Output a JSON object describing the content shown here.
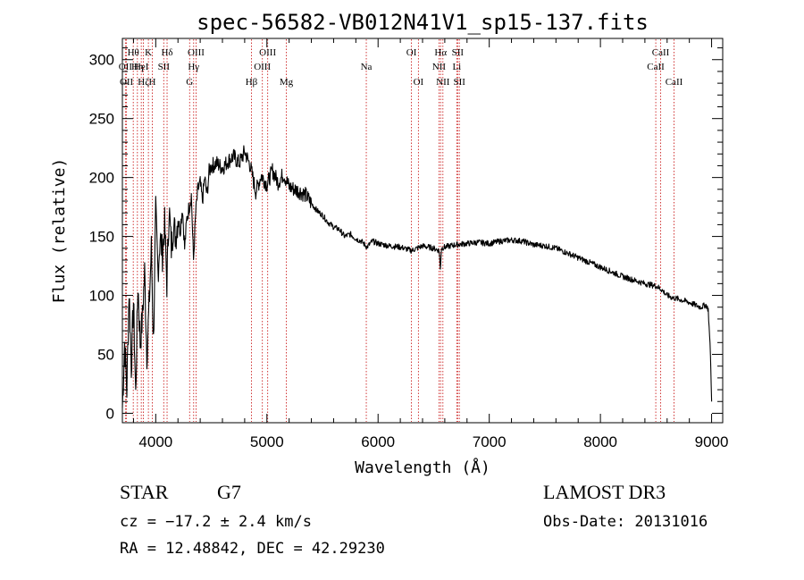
{
  "chart_data": {
    "type": "line",
    "title": "spec-56582-VB012N41V1_sp15-137.fits",
    "xlabel": "Wavelength (Å)",
    "ylabel": "Flux (relative)",
    "xlim": [
      3700,
      9100
    ],
    "ylim": [
      -8,
      318
    ],
    "xticks": [
      4000,
      5000,
      6000,
      7000,
      8000,
      9000
    ],
    "yticks": [
      0,
      50,
      100,
      150,
      200,
      250,
      300
    ],
    "xminor_step": 200,
    "yminor_step": 10,
    "line_color": "#000000",
    "marker_color": "#cc2222",
    "spectrum": {
      "x": [
        3700,
        3720,
        3740,
        3760,
        3780,
        3800,
        3820,
        3840,
        3860,
        3880,
        3900,
        3920,
        3940,
        3960,
        3980,
        4000,
        4020,
        4040,
        4060,
        4080,
        4100,
        4120,
        4140,
        4160,
        4180,
        4200,
        4220,
        4240,
        4260,
        4280,
        4300,
        4320,
        4340,
        4360,
        4380,
        4400,
        4420,
        4440,
        4460,
        4480,
        4500,
        4550,
        4600,
        4650,
        4700,
        4750,
        4800,
        4850,
        4900,
        4950,
        5000,
        5050,
        5100,
        5150,
        5200,
        5250,
        5300,
        5350,
        5400,
        5450,
        5500,
        5550,
        5600,
        5650,
        5700,
        5750,
        5800,
        5850,
        5900,
        5950,
        6000,
        6100,
        6200,
        6300,
        6400,
        6500,
        6550,
        6560,
        6570,
        6600,
        6700,
        6800,
        6900,
        7000,
        7100,
        7200,
        7300,
        7400,
        7500,
        7600,
        7700,
        7800,
        7900,
        8000,
        8100,
        8200,
        8300,
        8400,
        8500,
        8550,
        8600,
        8650,
        8700,
        8800,
        8900,
        8950,
        8970,
        8990,
        9000
      ],
      "y": [
        5,
        60,
        20,
        105,
        40,
        95,
        15,
        110,
        60,
        80,
        120,
        50,
        90,
        140,
        60,
        170,
        120,
        150,
        135,
        160,
        110,
        175,
        140,
        160,
        150,
        165,
        155,
        175,
        140,
        165,
        175,
        185,
        130,
        170,
        190,
        195,
        180,
        200,
        185,
        205,
        210,
        212,
        208,
        214,
        218,
        212,
        222,
        210,
        188,
        202,
        194,
        206,
        196,
        203,
        192,
        190,
        188,
        185,
        178,
        172,
        168,
        162,
        158,
        156,
        150,
        152,
        148,
        146,
        141,
        146,
        144,
        142,
        141,
        138,
        142,
        140,
        138,
        122,
        140,
        141,
        143,
        144,
        145,
        144,
        146,
        147,
        146,
        143,
        142,
        140,
        136,
        132,
        128,
        124,
        120,
        116,
        113,
        110,
        108,
        105,
        100,
        98,
        97,
        94,
        90,
        92,
        88,
        50,
        10
      ]
    },
    "lines": [
      {
        "name": "Hθ",
        "wl": 3798,
        "row": 0
      },
      {
        "name": "OII",
        "wl": 3727,
        "row": 1
      },
      {
        "name": "OII",
        "wl": 3737,
        "row": 2
      },
      {
        "name": "Hη",
        "wl": 3835,
        "row": 1
      },
      {
        "name": "Hζ",
        "wl": 3889,
        "row": 2
      },
      {
        "name": "HeI",
        "wl": 3870,
        "row": 1
      },
      {
        "name": "K",
        "wl": 3934,
        "row": 0
      },
      {
        "name": "H",
        "wl": 3969,
        "row": 2
      },
      {
        "name": "SII",
        "wl": 4072,
        "row": 1
      },
      {
        "name": "Hδ",
        "wl": 4102,
        "row": 0
      },
      {
        "name": "OIII",
        "wl": 4363,
        "row": 0
      },
      {
        "name": "Hγ",
        "wl": 4341,
        "row": 1
      },
      {
        "name": "G",
        "wl": 4305,
        "row": 2
      },
      {
        "name": "Hβ",
        "wl": 4861,
        "row": 2
      },
      {
        "name": "OIII",
        "wl": 4959,
        "row": 1
      },
      {
        "name": "OIII",
        "wl": 5007,
        "row": 0
      },
      {
        "name": "Mg",
        "wl": 5175,
        "row": 2
      },
      {
        "name": "Na",
        "wl": 5894,
        "row": 1
      },
      {
        "name": "OI",
        "wl": 6300,
        "row": 0
      },
      {
        "name": "OI",
        "wl": 6363,
        "row": 2
      },
      {
        "name": "Hα",
        "wl": 6563,
        "row": 0
      },
      {
        "name": "NII",
        "wl": 6548,
        "row": 1
      },
      {
        "name": "NII",
        "wl": 6583,
        "row": 2
      },
      {
        "name": "SII",
        "wl": 6716,
        "row": 0
      },
      {
        "name": "Li",
        "wl": 6708,
        "row": 1
      },
      {
        "name": "SII",
        "wl": 6731,
        "row": 2
      },
      {
        "name": "CaII",
        "wl": 8498,
        "row": 1
      },
      {
        "name": "CaII",
        "wl": 8542,
        "row": 0
      },
      {
        "name": "CaII",
        "wl": 8662,
        "row": 2
      }
    ]
  },
  "info": {
    "object_type": "STAR",
    "subclass": "G7",
    "survey": "LAMOST DR3",
    "redshift": "cz = −17.2 ± 2.4 km/s",
    "obs_date": "Obs-Date: 20131016",
    "coords": "RA =  12.48842, DEC =  42.29230"
  }
}
